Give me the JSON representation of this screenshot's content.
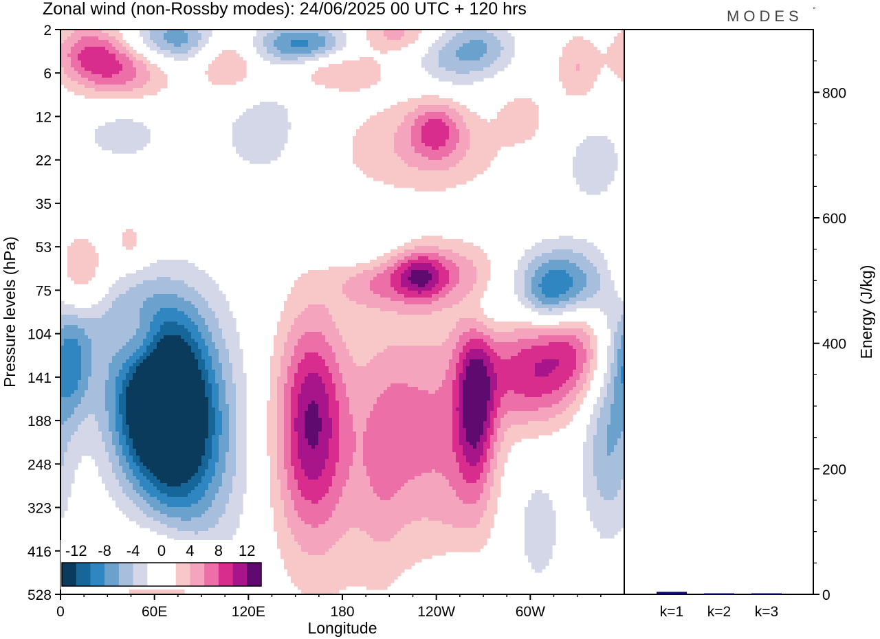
{
  "chart_data": [
    {
      "type": "heatmap",
      "title": "Zonal wind (non-Rossby modes):  24/06/2025  00 UTC  + 120 hrs",
      "xlabel": "Longitude",
      "ylabel": "Pressure levels (hPa)",
      "x_ticks": [
        "0",
        "60E",
        "120E",
        "180",
        "120W",
        "60W"
      ],
      "x_tick_values": [
        0,
        60,
        120,
        180,
        240,
        300
      ],
      "xlim": [
        0,
        360
      ],
      "y_ticks": [
        "2",
        "6",
        "12",
        "22",
        "35",
        "53",
        "75",
        "104",
        "141",
        "188",
        "248",
        "323",
        "416",
        "528"
      ],
      "colorbar": {
        "labels": [
          "-12",
          "-8",
          "-4",
          "0",
          "4",
          "8",
          "12"
        ],
        "label_values": [
          -12,
          -8,
          -4,
          0,
          4,
          8,
          12
        ],
        "bounds": [
          -14,
          -12,
          -10,
          -8,
          -6,
          -4,
          -2,
          0,
          2,
          4,
          6,
          8,
          10,
          12,
          14
        ],
        "colors": [
          "#0b3b5c",
          "#17669a",
          "#2f86c0",
          "#6aa2cd",
          "#a7bedc",
          "#d3d7e8",
          "#ffffff",
          "#ffffff",
          "#f8c8c8",
          "#f4a4bc",
          "#ec6fa8",
          "#d92d8e",
          "#a8148a",
          "#5e0a6e"
        ]
      },
      "features": [
        {
          "lon": 18,
          "lev": 0.5,
          "sx": 16,
          "sy": 0.5,
          "v": 6
        },
        {
          "lon": 40,
          "lev": 0.9,
          "sx": 22,
          "sy": 0.5,
          "v": 7
        },
        {
          "lon": 60,
          "lev": 0.3,
          "sx": 18,
          "sy": 0.4,
          "v": -4
        },
        {
          "lon": 78,
          "lev": 0.2,
          "sx": 16,
          "sy": 0.4,
          "v": -5
        },
        {
          "lon": 108,
          "lev": 0.8,
          "sx": 14,
          "sy": 0.5,
          "v": 5
        },
        {
          "lon": 155,
          "lev": 0.35,
          "sx": 22,
          "sy": 0.35,
          "v": -9
        },
        {
          "lon": 175,
          "lev": 0.9,
          "sx": 22,
          "sy": 0.35,
          "v": 5
        },
        {
          "lon": 215,
          "lev": 0.1,
          "sx": 20,
          "sy": 0.3,
          "v": 5
        },
        {
          "lon": 250,
          "lev": 0.6,
          "sx": 18,
          "sy": 0.6,
          "v": -5
        },
        {
          "lon": 272,
          "lev": 0.4,
          "sx": 14,
          "sy": 0.4,
          "v": -4
        },
        {
          "lon": 330,
          "lev": 0.9,
          "sx": 10,
          "sy": 0.6,
          "v": 4
        },
        {
          "lon": 130,
          "lev": 2.3,
          "sx": 24,
          "sy": 1.0,
          "v": -3
        },
        {
          "lon": 40,
          "lev": 2.4,
          "sx": 20,
          "sy": 0.5,
          "v": -3
        },
        {
          "lon": 230,
          "lev": 2.7,
          "sx": 40,
          "sy": 0.8,
          "v": 4
        },
        {
          "lon": 240,
          "lev": 2.3,
          "sx": 12,
          "sy": 0.5,
          "v": 6
        },
        {
          "lon": 340,
          "lev": 3.1,
          "sx": 16,
          "sy": 0.8,
          "v": -3
        },
        {
          "lon": 295,
          "lev": 2.0,
          "sx": 10,
          "sy": 0.4,
          "v": 3
        },
        {
          "lon": 12,
          "lev": 5.9,
          "sx": 14,
          "sy": 0.8,
          "v": 6
        },
        {
          "lon": 45,
          "lev": 4.9,
          "sx": 8,
          "sy": 0.4,
          "v": 3
        },
        {
          "lon": 195,
          "lev": 4.9,
          "sx": 18,
          "sy": 0.5,
          "v": -3
        },
        {
          "lon": 235,
          "lev": 5.6,
          "sx": 32,
          "sy": 0.5,
          "v": 5
        },
        {
          "lon": 230,
          "lev": 5.7,
          "sx": 12,
          "sy": 0.4,
          "v": 7
        },
        {
          "lon": 197,
          "lev": 5.9,
          "sx": 16,
          "sy": 0.4,
          "v": 3
        },
        {
          "lon": 320,
          "lev": 5.8,
          "sx": 22,
          "sy": 0.6,
          "v": -8
        },
        {
          "lon": 312,
          "lev": 6.2,
          "sx": 12,
          "sy": 0.5,
          "v": -4
        },
        {
          "lon": 270,
          "lev": 6.5,
          "sx": 10,
          "sy": 0.5,
          "v": -3
        },
        {
          "lon": 30,
          "lev": 6.6,
          "sx": 32,
          "sy": 0.7,
          "v": -5
        },
        {
          "lon": 6,
          "lev": 7.7,
          "sx": 10,
          "sy": 0.9,
          "v": -8
        },
        {
          "lon": 50,
          "lev": 7.1,
          "sx": 12,
          "sy": 0.6,
          "v": 6
        },
        {
          "lon": 58,
          "lev": 8.5,
          "sx": 20,
          "sy": 1.3,
          "v": -13
        },
        {
          "lon": 80,
          "lev": 8.8,
          "sx": 26,
          "sy": 1.9,
          "v": -5
        },
        {
          "lon": 75,
          "lev": 9.2,
          "sx": 18,
          "sy": 1.6,
          "v": -7
        },
        {
          "lon": 100,
          "lev": 10.3,
          "sx": 24,
          "sy": 1.9,
          "v": -2
        },
        {
          "lon": 160,
          "lev": 8.9,
          "sx": 14,
          "sy": 1.6,
          "v": 8
        },
        {
          "lon": 165,
          "lev": 9.8,
          "sx": 26,
          "sy": 2.3,
          "v": 5
        },
        {
          "lon": 205,
          "lev": 10.0,
          "sx": 12,
          "sy": 2.0,
          "v": 3
        },
        {
          "lon": 225,
          "lev": 9.1,
          "sx": 18,
          "sy": 1.8,
          "v": 5
        },
        {
          "lon": 265,
          "lev": 8.6,
          "sx": 9,
          "sy": 1.4,
          "v": 10
        },
        {
          "lon": 255,
          "lev": 9.8,
          "sx": 18,
          "sy": 2.2,
          "v": 4
        },
        {
          "lon": 300,
          "lev": 7.9,
          "sx": 22,
          "sy": 0.9,
          "v": 9
        },
        {
          "lon": 330,
          "lev": 7.3,
          "sx": 16,
          "sy": 0.8,
          "v": 6
        },
        {
          "lon": 350,
          "lev": 9.5,
          "sx": 12,
          "sy": 1.5,
          "v": -6
        },
        {
          "lon": 305,
          "lev": 11.5,
          "sx": 12,
          "sy": 1.1,
          "v": -3
        },
        {
          "lon": 65,
          "lev": 12.7,
          "sx": 18,
          "sy": 0.9,
          "v": 5
        },
        {
          "lon": 255,
          "lev": 12.9,
          "sx": 12,
          "sy": 0.6,
          "v": -3
        }
      ]
    },
    {
      "type": "bar",
      "categories": [
        "k=1",
        "k=2",
        "k=3"
      ],
      "values": [
        4,
        1,
        1
      ],
      "ylabel": "Energy (J/kg)",
      "y_ticks": [
        "0",
        "200",
        "400",
        "600",
        "800"
      ],
      "ylim": [
        0,
        900
      ],
      "bar_color": "#0a0a6e"
    }
  ],
  "logo_text": "MODES",
  "logo_mark": "°"
}
